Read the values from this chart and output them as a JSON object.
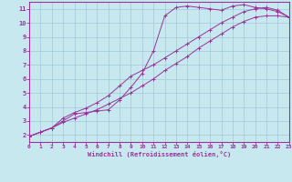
{
  "bg_color": "#c8e8f0",
  "grid_color": "#a0c8d8",
  "line_color": "#993399",
  "xlabel": "Windchill (Refroidissement éolien,°C)",
  "xlim": [
    0,
    23
  ],
  "ylim": [
    1.5,
    11.5
  ],
  "xticks": [
    0,
    1,
    2,
    3,
    4,
    5,
    6,
    7,
    8,
    9,
    10,
    11,
    12,
    13,
    14,
    15,
    16,
    17,
    18,
    19,
    20,
    21,
    22,
    23
  ],
  "yticks": [
    2,
    3,
    4,
    5,
    6,
    7,
    8,
    9,
    10,
    11
  ],
  "line1_x": [
    0,
    1,
    2,
    3,
    4,
    5,
    6,
    7,
    8,
    9,
    10,
    11,
    12,
    13,
    14,
    15,
    16,
    17,
    18,
    19,
    20,
    21,
    22,
    23
  ],
  "line1_y": [
    1.9,
    2.2,
    2.5,
    2.9,
    3.2,
    3.5,
    3.8,
    4.2,
    4.6,
    5.0,
    5.5,
    6.0,
    6.6,
    7.1,
    7.6,
    8.2,
    8.7,
    9.2,
    9.7,
    10.1,
    10.4,
    10.5,
    10.5,
    10.4
  ],
  "line2_x": [
    0,
    1,
    2,
    3,
    4,
    5,
    6,
    7,
    8,
    9,
    10,
    11,
    12,
    13,
    14,
    15,
    16,
    17,
    18,
    19,
    20,
    21,
    22,
    23
  ],
  "line2_y": [
    1.9,
    2.2,
    2.5,
    3.0,
    3.5,
    3.6,
    3.7,
    3.8,
    4.5,
    5.4,
    6.4,
    8.0,
    10.5,
    11.1,
    11.2,
    11.1,
    11.0,
    10.9,
    11.2,
    11.3,
    11.1,
    11.0,
    10.8,
    10.4
  ],
  "line3_x": [
    0,
    1,
    2,
    3,
    4,
    5,
    6,
    7,
    8,
    9,
    10,
    11,
    12,
    13,
    14,
    15,
    16,
    17,
    18,
    19,
    20,
    21,
    22,
    23
  ],
  "line3_y": [
    1.9,
    2.2,
    2.5,
    3.2,
    3.6,
    3.9,
    4.3,
    4.8,
    5.5,
    6.2,
    6.6,
    7.0,
    7.5,
    8.0,
    8.5,
    9.0,
    9.5,
    10.0,
    10.4,
    10.8,
    11.0,
    11.1,
    10.9,
    10.4
  ]
}
